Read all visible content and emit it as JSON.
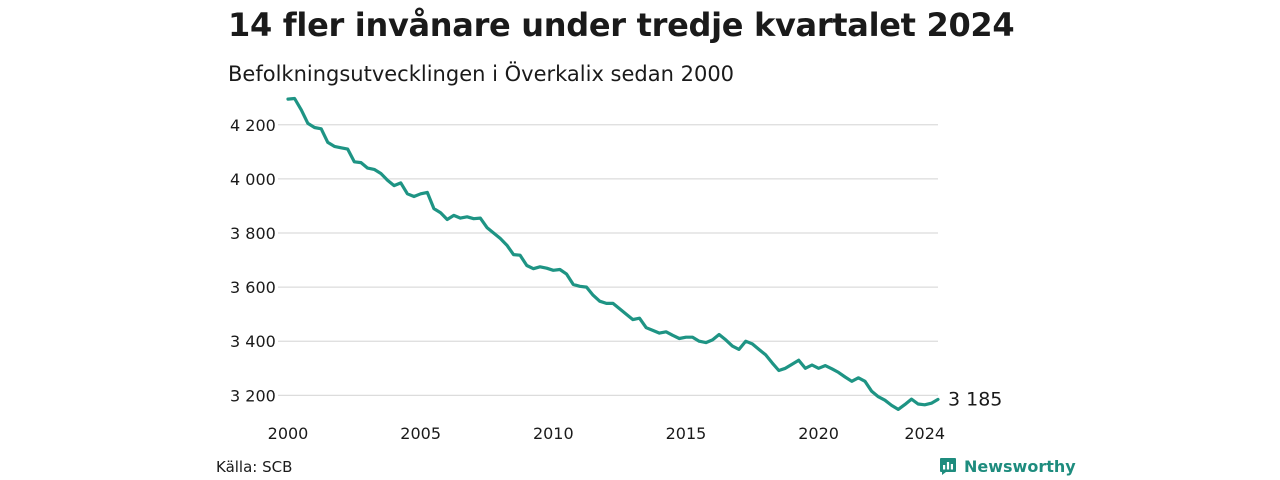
{
  "header": {
    "title": "14 fler invånare under tredje kvartalet 2024",
    "subtitle": "Befolkningsutvecklingen i Överkalix sedan 2000"
  },
  "footer": {
    "source": "Källa: SCB",
    "brand": "Newsworthy"
  },
  "colors": {
    "line": "#1e9484",
    "grid": "#dcdcdc",
    "brand": "#1e8c7e"
  },
  "icons": {
    "brand_logo": "newsworthy-logo-icon"
  },
  "chart_data": {
    "type": "line",
    "title": "14 fler invånare under tredje kvartalet 2024",
    "subtitle": "Befolkningsutvecklingen i Överkalix sedan 2000",
    "xlabel": "",
    "ylabel": "",
    "x_tick_labels": [
      "2000",
      "2005",
      "2010",
      "2015",
      "2020",
      "2024"
    ],
    "x_tick_values": [
      2000,
      2005,
      2010,
      2015,
      2020,
      2024
    ],
    "y_tick_labels": [
      "3 200",
      "3 400",
      "3 600",
      "3 800",
      "4 000",
      "4 200"
    ],
    "y_tick_values": [
      3200,
      3400,
      3600,
      3800,
      4000,
      4200
    ],
    "xlim": [
      2000,
      2024.5
    ],
    "ylim": [
      3120,
      4310
    ],
    "grid": "horizontal",
    "legend": "none",
    "end_label": "3 185",
    "series": [
      {
        "values": [
          [
            2000.0,
            4295
          ],
          [
            2000.25,
            4297
          ],
          [
            2000.5,
            4255
          ],
          [
            2000.75,
            4205
          ],
          [
            2001.0,
            4190
          ],
          [
            2001.25,
            4185
          ],
          [
            2001.5,
            4135
          ],
          [
            2001.75,
            4120
          ],
          [
            2002.0,
            4115
          ],
          [
            2002.25,
            4110
          ],
          [
            2002.5,
            4063
          ],
          [
            2002.75,
            4060
          ],
          [
            2003.0,
            4040
          ],
          [
            2003.25,
            4035
          ],
          [
            2003.5,
            4020
          ],
          [
            2003.75,
            3995
          ],
          [
            2004.0,
            3975
          ],
          [
            2004.25,
            3985
          ],
          [
            2004.5,
            3945
          ],
          [
            2004.75,
            3935
          ],
          [
            2005.0,
            3945
          ],
          [
            2005.25,
            3950
          ],
          [
            2005.5,
            3890
          ],
          [
            2005.75,
            3875
          ],
          [
            2006.0,
            3850
          ],
          [
            2006.25,
            3865
          ],
          [
            2006.5,
            3855
          ],
          [
            2006.75,
            3860
          ],
          [
            2007.0,
            3853
          ],
          [
            2007.25,
            3855
          ],
          [
            2007.5,
            3820
          ],
          [
            2007.75,
            3800
          ],
          [
            2008.0,
            3780
          ],
          [
            2008.25,
            3755
          ],
          [
            2008.5,
            3720
          ],
          [
            2008.75,
            3718
          ],
          [
            2009.0,
            3680
          ],
          [
            2009.25,
            3668
          ],
          [
            2009.5,
            3675
          ],
          [
            2009.75,
            3670
          ],
          [
            2010.0,
            3662
          ],
          [
            2010.25,
            3665
          ],
          [
            2010.5,
            3648
          ],
          [
            2010.75,
            3610
          ],
          [
            2011.0,
            3603
          ],
          [
            2011.25,
            3600
          ],
          [
            2011.5,
            3570
          ],
          [
            2011.75,
            3548
          ],
          [
            2012.0,
            3540
          ],
          [
            2012.25,
            3540
          ],
          [
            2012.5,
            3520
          ],
          [
            2012.75,
            3500
          ],
          [
            2013.0,
            3480
          ],
          [
            2013.25,
            3485
          ],
          [
            2013.5,
            3450
          ],
          [
            2013.75,
            3440
          ],
          [
            2014.0,
            3430
          ],
          [
            2014.25,
            3435
          ],
          [
            2014.5,
            3422
          ],
          [
            2014.75,
            3410
          ],
          [
            2015.0,
            3415
          ],
          [
            2015.25,
            3415
          ],
          [
            2015.5,
            3400
          ],
          [
            2015.75,
            3395
          ],
          [
            2016.0,
            3405
          ],
          [
            2016.25,
            3425
          ],
          [
            2016.5,
            3405
          ],
          [
            2016.75,
            3382
          ],
          [
            2017.0,
            3370
          ],
          [
            2017.25,
            3400
          ],
          [
            2017.5,
            3390
          ],
          [
            2017.75,
            3370
          ],
          [
            2018.0,
            3350
          ],
          [
            2018.25,
            3320
          ],
          [
            2018.5,
            3292
          ],
          [
            2018.75,
            3300
          ],
          [
            2019.0,
            3315
          ],
          [
            2019.25,
            3330
          ],
          [
            2019.5,
            3300
          ],
          [
            2019.75,
            3312
          ],
          [
            2020.0,
            3300
          ],
          [
            2020.25,
            3310
          ],
          [
            2020.5,
            3298
          ],
          [
            2020.75,
            3285
          ],
          [
            2021.0,
            3268
          ],
          [
            2021.25,
            3252
          ],
          [
            2021.5,
            3265
          ],
          [
            2021.75,
            3252
          ],
          [
            2022.0,
            3215
          ],
          [
            2022.25,
            3195
          ],
          [
            2022.5,
            3182
          ],
          [
            2022.75,
            3163
          ],
          [
            2023.0,
            3148
          ],
          [
            2023.25,
            3166
          ],
          [
            2023.5,
            3186
          ],
          [
            2023.75,
            3168
          ],
          [
            2024.0,
            3165
          ],
          [
            2024.25,
            3171
          ],
          [
            2024.5,
            3185
          ]
        ]
      }
    ]
  }
}
